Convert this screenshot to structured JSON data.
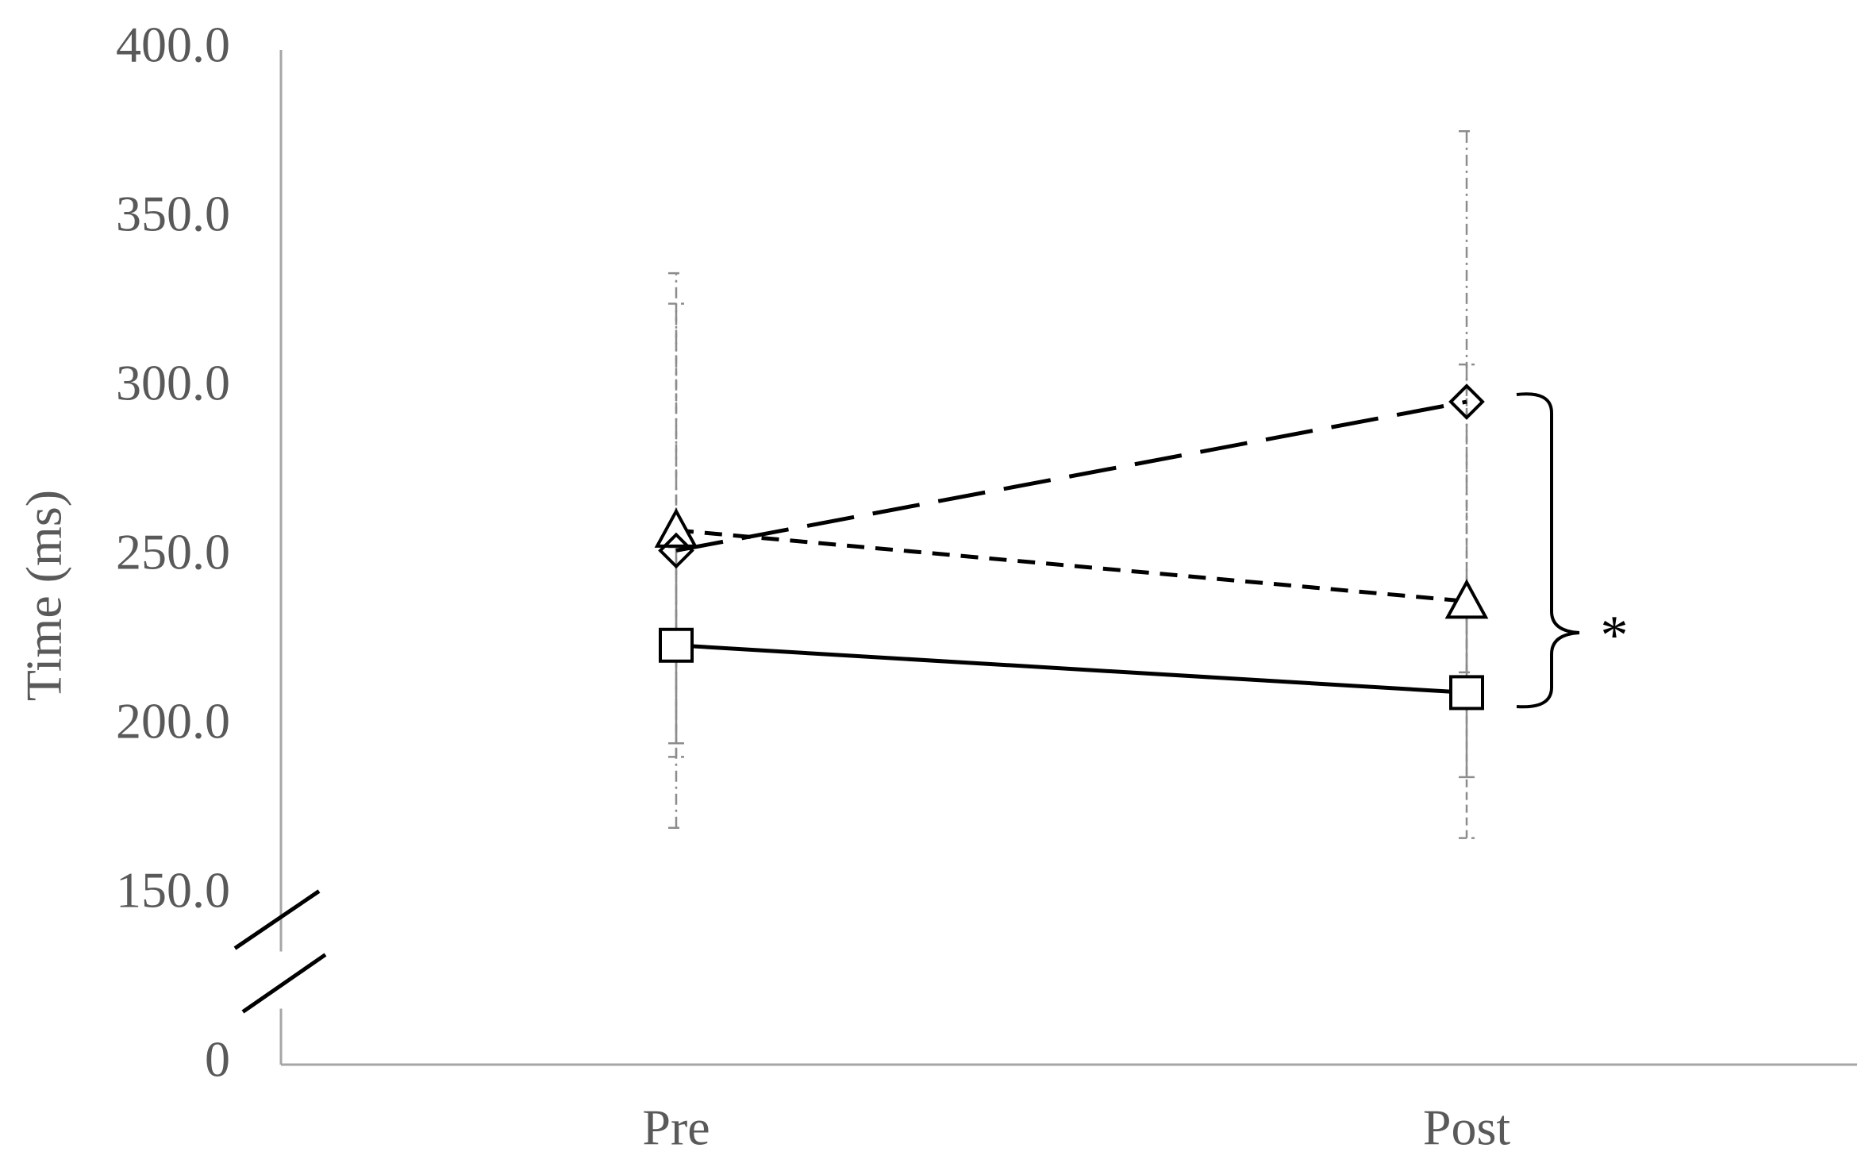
{
  "chart_data": {
    "type": "line",
    "y_label": "Time (ms)",
    "categories": [
      "Pre",
      "Post"
    ],
    "series": [
      {
        "color": "#000000",
        "marker": "square",
        "dash": "solid",
        "values": [
          224,
          210
        ],
        "errors": [
          29,
          25
        ]
      },
      {
        "color": "#000000",
        "marker": "triangle",
        "dash": "short",
        "values": [
          258,
          237
        ],
        "errors": [
          67,
          70
        ]
      },
      {
        "color": "#000000",
        "marker": "diamond",
        "dash": "long",
        "values": [
          252,
          296
        ],
        "errors": [
          82,
          80
        ]
      }
    ],
    "ylim": [
      0,
      400
    ],
    "yticks": [
      0,
      {
        "value": 150,
        "label": "150.0"
      },
      {
        "value": 200,
        "label": "200.0"
      },
      {
        "value": 250,
        "label": "250.0"
      },
      {
        "value": 300,
        "label": "300.0"
      },
      {
        "value": 350,
        "label": "350.0"
      },
      {
        "value": 400,
        "label": "400.0"
      }
    ],
    "y_axis_break": true,
    "annotations": [
      "*"
    ],
    "grid": false
  }
}
